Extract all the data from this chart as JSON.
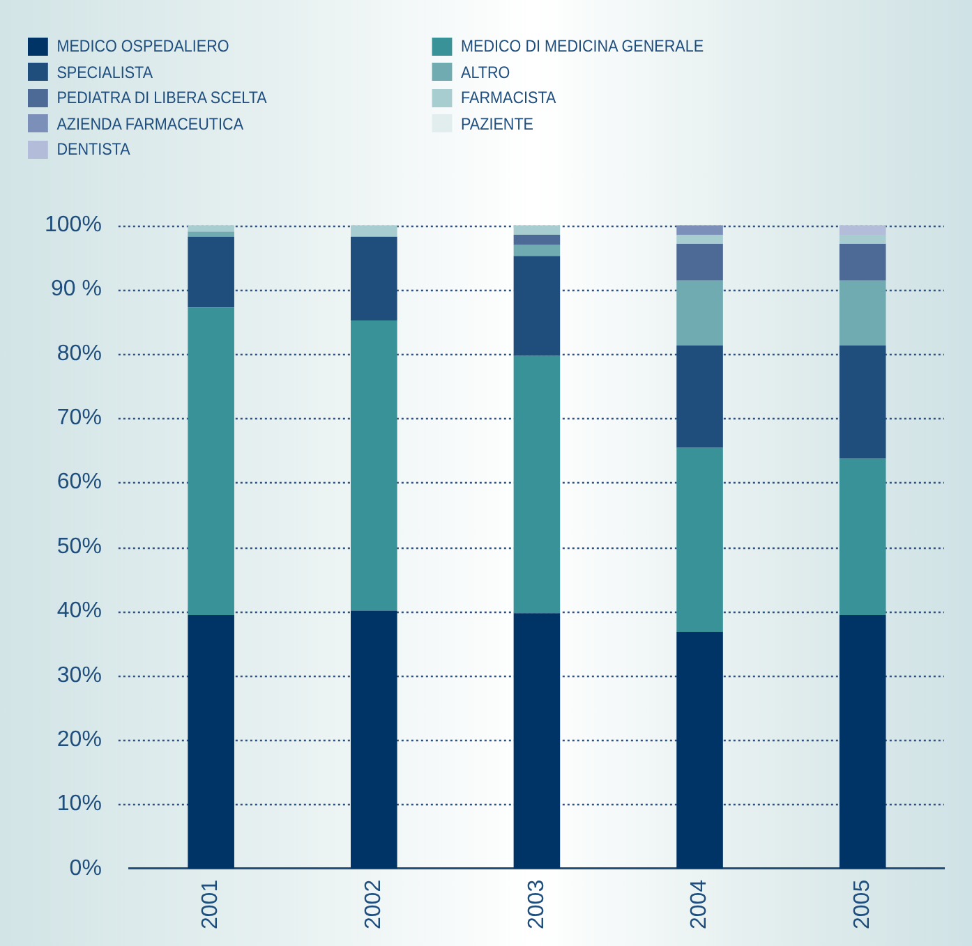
{
  "chart_data": {
    "type": "bar",
    "stacked": true,
    "categories": [
      "2001",
      "2002",
      "2003",
      "2004",
      "2005"
    ],
    "series": [
      {
        "name": "MEDICO OSPEDALIERO",
        "color": "#003366",
        "values": [
          39.4,
          40.1,
          39.7,
          36.8,
          39.4
        ]
      },
      {
        "name": "MEDICO DI MEDICINA GENERALE",
        "color": "#3a9299",
        "values": [
          47.8,
          45.1,
          40.0,
          28.6,
          24.3
        ]
      },
      {
        "name": "SPECIALISTA",
        "color": "#1f4e7d",
        "values": [
          11.0,
          13.0,
          15.5,
          15.9,
          17.6
        ]
      },
      {
        "name": "ALTRO",
        "color": "#6fabb0",
        "values": [
          0.8,
          0,
          1.7,
          10.1,
          10.1
        ]
      },
      {
        "name": "PEDIATRA DI LIBERA SCELTA",
        "color": "#4d6a96",
        "values": [
          0,
          0,
          1.6,
          5.7,
          5.7
        ]
      },
      {
        "name": "FARMACISTA",
        "color": "#a8cdd0",
        "values": [
          1.0,
          1.8,
          1.5,
          1.4,
          1.4
        ]
      },
      {
        "name": "AZIENDA FARMACEUTICA",
        "color": "#7b8fb8",
        "values": [
          0,
          0,
          0,
          1.5,
          0
        ]
      },
      {
        "name": "PAZIENTE",
        "color": "#e2eded",
        "values": [
          0,
          0,
          0,
          0,
          0
        ]
      },
      {
        "name": "DENTISTA",
        "color": "#b3bcd8",
        "values": [
          0,
          0,
          0,
          0,
          1.5
        ]
      }
    ],
    "ylim": [
      0,
      100
    ],
    "yticks": [
      {
        "value": 0,
        "label": "0%"
      },
      {
        "value": 10,
        "label": "10%"
      },
      {
        "value": 20,
        "label": "20%"
      },
      {
        "value": 30,
        "label": "30%"
      },
      {
        "value": 40,
        "label": "40%"
      },
      {
        "value": 50,
        "label": "50%"
      },
      {
        "value": 60,
        "label": "60%"
      },
      {
        "value": 70,
        "label": "70%"
      },
      {
        "value": 80,
        "label": "80%"
      },
      {
        "value": 90,
        "label": "90 %"
      },
      {
        "value": 100,
        "label": "100%"
      }
    ],
    "grid": "y",
    "legend": "top"
  }
}
